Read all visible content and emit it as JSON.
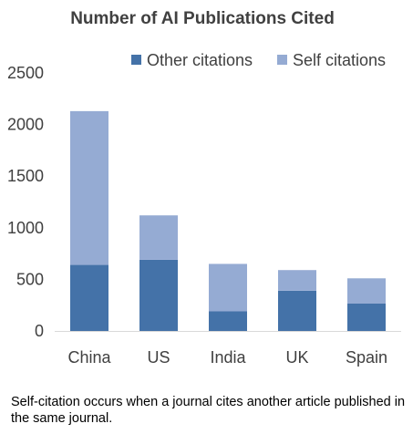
{
  "chart_data": {
    "type": "bar",
    "stacked": true,
    "title": "Number of AI Publications Cited",
    "categories": [
      "China",
      "US",
      "India",
      "UK",
      "Spain"
    ],
    "series": [
      {
        "name": "Other citations",
        "values": [
          640,
          690,
          190,
          390,
          265
        ]
      },
      {
        "name": "Self citations",
        "values": [
          1490,
          430,
          460,
          200,
          245
        ]
      }
    ],
    "xlabel": "",
    "ylabel": "",
    "ylim": [
      0,
      2500
    ],
    "yticks": [
      0,
      500,
      1000,
      1500,
      2000,
      2500
    ],
    "grid": false,
    "legend_position": "top-right",
    "colors": {
      "Other citations": "#4472a8",
      "Self citations": "#95abd3"
    }
  },
  "footnote": "Self-citation occurs when a journal cites another article published in the same journal."
}
